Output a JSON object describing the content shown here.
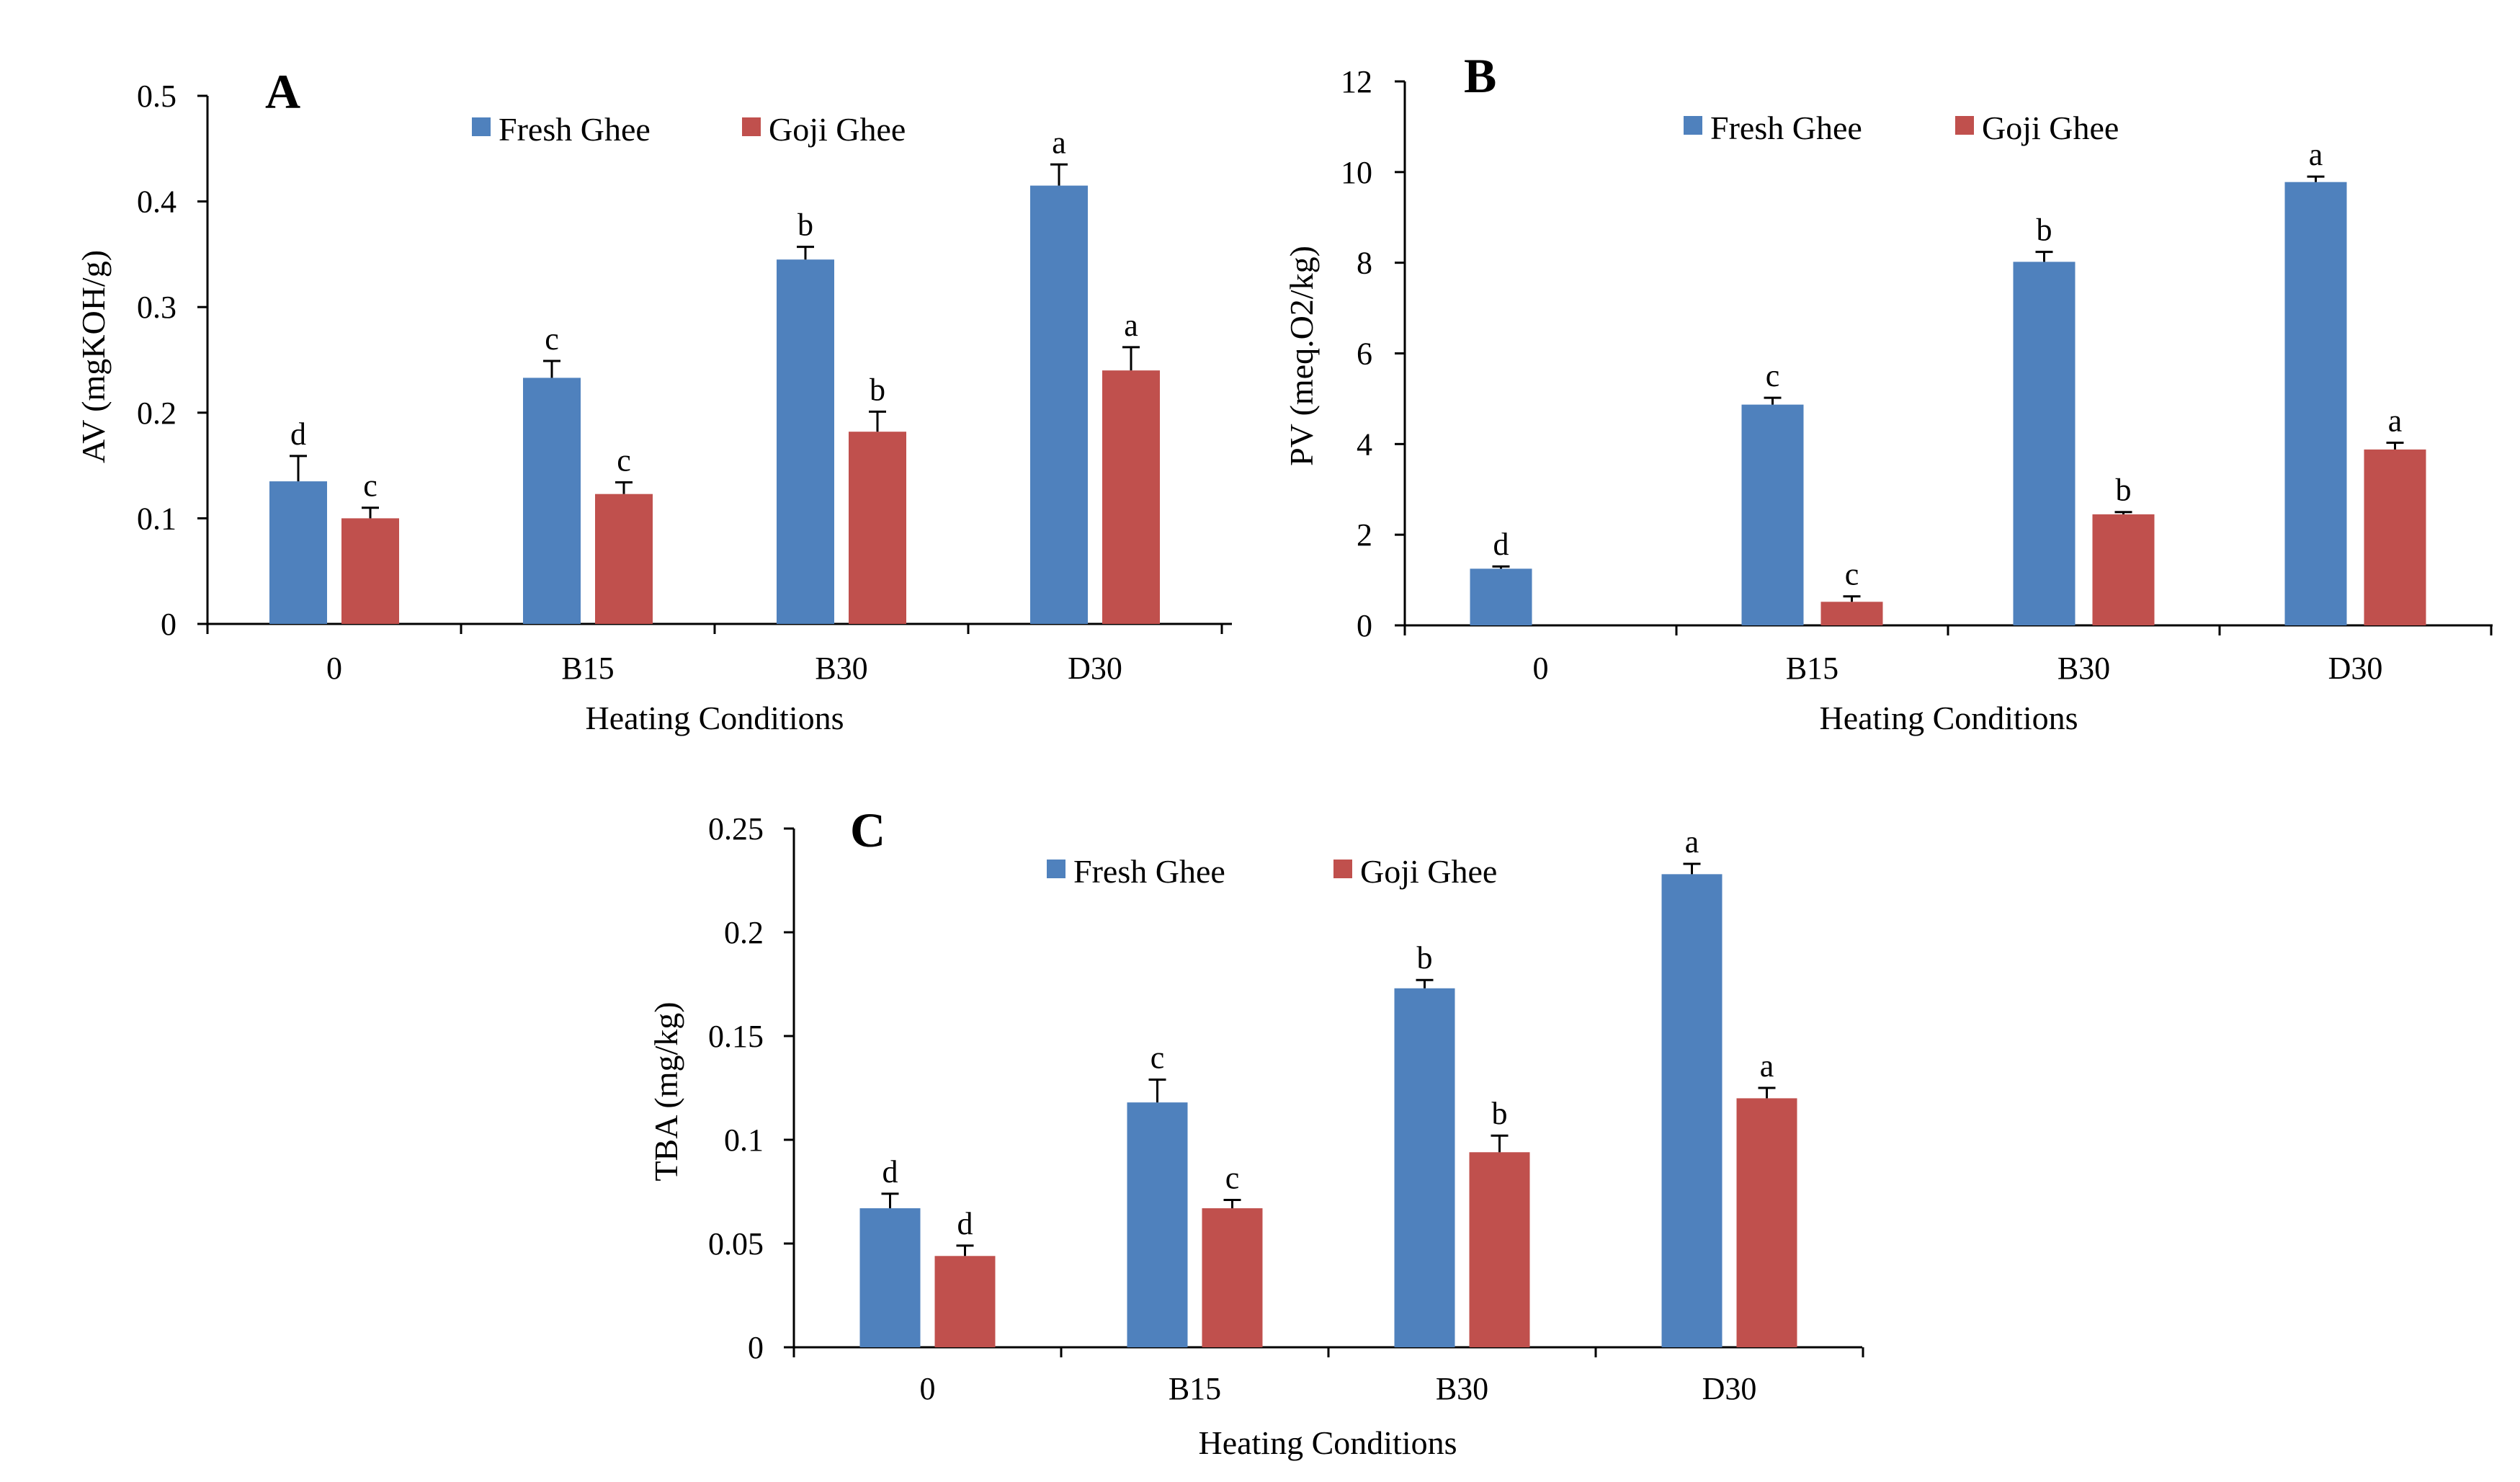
{
  "chart_data": [
    {
      "type": "bar",
      "panel": "A",
      "categories": [
        "0",
        "B15",
        "B30",
        "D30"
      ],
      "series": [
        {
          "name": "Fresh Ghee",
          "color": "#4f81bd",
          "values": [
            0.135,
            0.233,
            0.345,
            0.415
          ],
          "errors": [
            0.024,
            0.016,
            0.012,
            0.02
          ],
          "letters": [
            "d",
            "c",
            "b",
            "a"
          ]
        },
        {
          "name": "Goji Ghee",
          "color": "#c0504d",
          "values": [
            0.1,
            0.123,
            0.182,
            0.24
          ],
          "errors": [
            0.01,
            0.011,
            0.019,
            0.022
          ],
          "letters": [
            "c",
            "c",
            "b",
            "a"
          ]
        }
      ],
      "xlabel": "Heating Conditions",
      "ylabel": "AV (mgKOH/g)",
      "ylim": [
        0,
        0.5
      ],
      "yticks": [
        0,
        0.1,
        0.2,
        0.3,
        0.4,
        0.5
      ],
      "ytick_labels": [
        "0",
        "0.1",
        "0.2",
        "0.3",
        "0.4",
        "0.5"
      ],
      "legend": "top-center"
    },
    {
      "type": "bar",
      "panel": "B",
      "categories": [
        "0",
        "B15",
        "B30",
        "D30"
      ],
      "series": [
        {
          "name": "Fresh Ghee",
          "color": "#4f81bd",
          "values": [
            1.25,
            4.87,
            8.02,
            9.78
          ],
          "errors": [
            0.05,
            0.15,
            0.22,
            0.12
          ],
          "letters": [
            "d",
            "c",
            "b",
            "a"
          ]
        },
        {
          "name": "Goji Ghee",
          "color": "#c0504d",
          "values": [
            0.0,
            0.52,
            2.45,
            3.88
          ],
          "errors": [
            0.0,
            0.12,
            0.05,
            0.15
          ],
          "letters": [
            "",
            "c",
            "b",
            "a"
          ]
        }
      ],
      "xlabel": "Heating Conditions",
      "ylabel": "PV (meq.O2/kg)",
      "ylim": [
        0,
        12
      ],
      "yticks": [
        0,
        2,
        4,
        6,
        8,
        10,
        12
      ],
      "ytick_labels": [
        "0",
        "2",
        "4",
        "6",
        "8",
        "10",
        "12"
      ],
      "legend": "top-center"
    },
    {
      "type": "bar",
      "panel": "C",
      "categories": [
        "0",
        "B15",
        "B30",
        "D30"
      ],
      "series": [
        {
          "name": "Fresh Ghee",
          "color": "#4f81bd",
          "values": [
            0.067,
            0.118,
            0.173,
            0.228
          ],
          "errors": [
            0.007,
            0.011,
            0.004,
            0.005
          ],
          "letters": [
            "d",
            "c",
            "b",
            "a"
          ]
        },
        {
          "name": "Goji Ghee",
          "color": "#c0504d",
          "values": [
            0.044,
            0.067,
            0.094,
            0.12
          ],
          "errors": [
            0.005,
            0.004,
            0.008,
            0.005
          ],
          "letters": [
            "d",
            "c",
            "b",
            "a"
          ]
        }
      ],
      "xlabel": "Heating Conditions",
      "ylabel": "TBA (mg/kg)",
      "ylim": [
        0,
        0.25
      ],
      "yticks": [
        0,
        0.05,
        0.1,
        0.15,
        0.2,
        0.25
      ],
      "ytick_labels": [
        "0",
        "0.05",
        "0.1",
        "0.15",
        "0.2",
        "0.25"
      ],
      "legend": "top-center"
    }
  ]
}
